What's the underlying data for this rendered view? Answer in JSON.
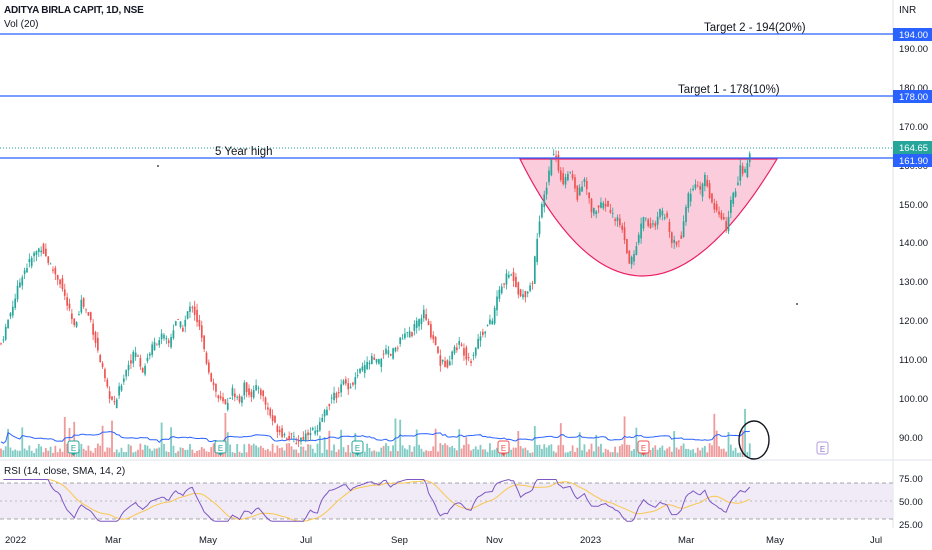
{
  "header": {
    "title": "ADITYA BIRLA CAPIT, 1D, NSE",
    "volume_label": "Vol (20)",
    "currency": "INR"
  },
  "rsi_header": {
    "label": "RSI (14, close, SMA, 14, 2)"
  },
  "colors": {
    "up": "#26a69a",
    "down": "#ef5350",
    "level_line": "#2962ff",
    "cup_fill": "#f8bbd0",
    "cup_stroke": "#e91e63",
    "rsi_line": "#7e57c2",
    "rsi_sma": "#f9c74f",
    "rsi_band": "#ede7f6",
    "vol_ma": "#2962ff",
    "last_price": "#26a69a",
    "axis_text": "#131722"
  },
  "chart_data": [
    {
      "type": "candlestick",
      "name": "price",
      "x_axis": {
        "ticks": [
          "2022",
          "Mar",
          "May",
          "Jul",
          "Sep",
          "Nov",
          "2023",
          "Mar",
          "May",
          "Jul"
        ]
      },
      "y_axis": {
        "ticks": [
          90,
          100,
          110,
          120,
          130,
          140,
          150,
          160,
          170,
          180,
          190
        ],
        "range": [
          86,
          200
        ]
      },
      "anchors": [
        [
          0,
          114
        ],
        [
          5,
          124
        ],
        [
          9,
          132
        ],
        [
          14,
          137
        ],
        [
          17,
          139
        ],
        [
          21,
          134
        ],
        [
          25,
          130
        ],
        [
          29,
          122
        ],
        [
          31,
          118
        ],
        [
          34,
          125
        ],
        [
          38,
          120
        ],
        [
          41,
          112
        ],
        [
          45,
          102
        ],
        [
          48,
          98
        ],
        [
          51,
          104
        ],
        [
          54,
          109
        ],
        [
          57,
          112
        ],
        [
          60,
          107
        ],
        [
          63,
          112
        ],
        [
          65,
          114
        ],
        [
          68,
          116
        ],
        [
          71,
          114
        ],
        [
          74,
          120
        ],
        [
          77,
          118
        ],
        [
          79,
          122
        ],
        [
          81,
          124
        ],
        [
          84,
          118
        ],
        [
          86,
          112
        ],
        [
          89,
          105
        ],
        [
          92,
          100
        ],
        [
          95,
          98
        ],
        [
          98,
          102
        ],
        [
          101,
          99
        ],
        [
          103,
          103
        ],
        [
          106,
          101
        ],
        [
          109,
          103
        ],
        [
          111,
          100
        ],
        [
          113,
          97
        ],
        [
          116,
          93
        ],
        [
          119,
          91
        ],
        [
          122,
          90
        ],
        [
          125,
          89
        ],
        [
          128,
          90
        ],
        [
          131,
          92
        ],
        [
          134,
          91
        ],
        [
          136,
          95
        ],
        [
          139,
          99
        ],
        [
          142,
          101
        ],
        [
          145,
          104
        ],
        [
          148,
          103
        ],
        [
          151,
          106
        ],
        [
          154,
          108
        ],
        [
          157,
          110
        ],
        [
          160,
          109
        ],
        [
          162,
          112
        ],
        [
          165,
          111
        ],
        [
          168,
          114
        ],
        [
          171,
          116
        ],
        [
          174,
          117
        ],
        [
          176,
          119
        ],
        [
          179,
          122
        ],
        [
          181,
          118
        ],
        [
          184,
          114
        ],
        [
          186,
          109
        ],
        [
          189,
          109
        ],
        [
          191,
          112
        ],
        [
          194,
          114
        ],
        [
          197,
          111
        ],
        [
          199,
          110
        ],
        [
          202,
          115
        ],
        [
          205,
          118
        ],
        [
          208,
          120
        ],
        [
          210,
          126
        ],
        [
          213,
          130
        ],
        [
          215,
          132
        ],
        [
          217,
          131
        ],
        [
          220,
          126
        ],
        [
          222,
          127
        ],
        [
          225,
          130
        ],
        [
          227,
          142
        ],
        [
          229,
          149
        ],
        [
          231,
          155
        ],
        [
          233,
          162
        ],
        [
          235,
          163
        ],
        [
          236,
          158
        ],
        [
          238,
          156
        ],
        [
          241,
          158
        ],
        [
          244,
          152
        ],
        [
          247,
          156
        ],
        [
          250,
          148
        ],
        [
          253,
          149
        ],
        [
          256,
          150
        ],
        [
          259,
          147
        ],
        [
          262,
          145
        ],
        [
          264,
          141
        ],
        [
          266,
          135
        ],
        [
          268,
          137
        ],
        [
          270,
          142
        ],
        [
          272,
          147
        ],
        [
          274,
          145
        ],
        [
          277,
          144
        ],
        [
          279,
          148
        ],
        [
          282,
          146
        ],
        [
          284,
          141
        ],
        [
          286,
          140
        ],
        [
          288,
          142
        ],
        [
          290,
          150
        ],
        [
          293,
          155
        ],
        [
          296,
          153
        ],
        [
          298,
          157
        ],
        [
          300,
          152
        ],
        [
          303,
          148
        ],
        [
          305,
          146
        ],
        [
          307,
          144
        ],
        [
          309,
          150
        ],
        [
          311,
          154
        ],
        [
          313,
          159
        ],
        [
          315,
          158
        ],
        [
          317,
          163
        ]
      ],
      "last_price": 164.65
    },
    {
      "type": "volume",
      "name": "Vol (20)",
      "earnings_markers": [
        {
          "label": "E",
          "position": "dividend-green-1"
        },
        {
          "label": "E",
          "position": "dividend-green-2"
        },
        {
          "label": "E",
          "position": "dividend-green-3"
        },
        {
          "label": "E",
          "position": "red-1"
        },
        {
          "label": "E",
          "position": "red-2"
        },
        {
          "label": "E",
          "position": "future"
        }
      ]
    },
    {
      "type": "line",
      "name": "RSI (14, close, SMA, 14, 2)",
      "y_axis": {
        "ticks": [
          25.0,
          50.0,
          75.0
        ],
        "range": [
          20,
          90
        ]
      },
      "bands": [
        30,
        70
      ]
    }
  ],
  "price_labels": {
    "p194": "194.00",
    "p178": "178.00",
    "p164": "164.65",
    "p161": "161.90"
  },
  "axis": {
    "price_ticks": [
      "190.00",
      "180.00",
      "170.00",
      "160.00",
      "150.00",
      "140.00",
      "130.00",
      "120.00",
      "110.00",
      "100.00",
      "90.00"
    ],
    "rsi_ticks": [
      "75.00",
      "50.00",
      "25.00"
    ],
    "time_ticks": [
      "2022",
      "Mar",
      "May",
      "Jul",
      "Sep",
      "Nov",
      "2023",
      "Mar",
      "May",
      "Jul"
    ]
  },
  "annotations": {
    "target2": "Target 2 - 194(20%)",
    "target1": "Target 1 - 178(10%)",
    "five_year": "5 Year high"
  },
  "markers": {
    "earnings_letter": "E"
  }
}
